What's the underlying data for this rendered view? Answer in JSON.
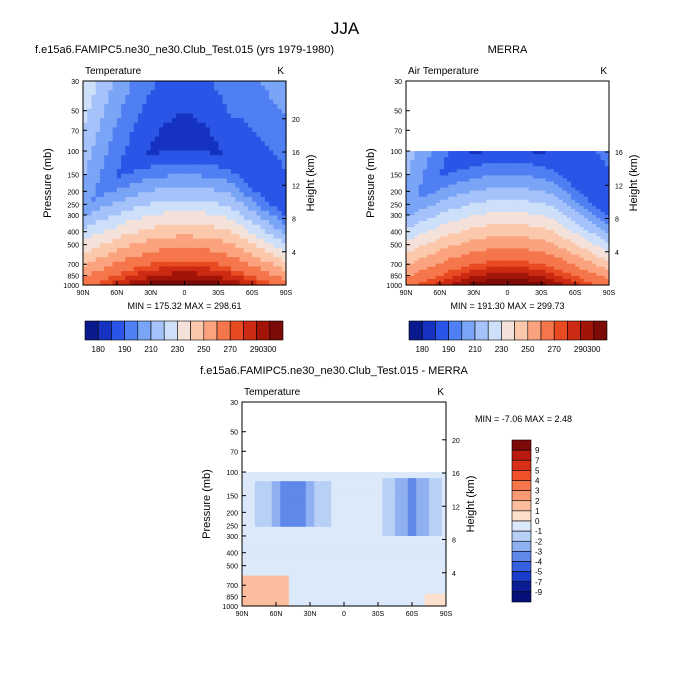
{
  "figure": {
    "title": "JJA"
  },
  "chart_data": [
    {
      "type": "heatmap",
      "id": "model",
      "panel_title": "f.e15a6.FAMIPC5.ne30_ne30.Club_Test.015 (yrs 1979-1980)",
      "corner_left": "Temperature",
      "corner_right": "K",
      "ylabel": "Pressure (mb)",
      "y2label": "Height (km)",
      "x_ticks": [
        "90N",
        "60N",
        "30N",
        "0",
        "30S",
        "60S",
        "90S"
      ],
      "p_ticks": [
        "30",
        "50",
        "70",
        "100",
        "150",
        "200",
        "250",
        "300",
        "400",
        "500",
        "700",
        "850",
        "1000"
      ],
      "height_ticks": [
        "20",
        "16",
        "12",
        "8",
        "4"
      ],
      "stats": "MIN = 175.32  MAX = 298.61",
      "data_top_mb": 30
    },
    {
      "type": "heatmap",
      "id": "obs",
      "panel_title": "MERRA",
      "corner_left": "Air Temperature",
      "corner_right": "K",
      "ylabel": "Pressure (mb)",
      "y2label": "Height (km)",
      "x_ticks": [
        "90N",
        "60N",
        "30N",
        "0",
        "30S",
        "60S",
        "90S"
      ],
      "p_ticks": [
        "30",
        "50",
        "70",
        "100",
        "150",
        "200",
        "250",
        "300",
        "400",
        "500",
        "700",
        "850",
        "1000"
      ],
      "height_ticks": [
        "16",
        "12",
        "8",
        "4"
      ],
      "stats": "MIN = 191.30  MAX = 299.73",
      "data_top_mb": 100
    },
    {
      "type": "heatmap",
      "id": "diff",
      "panel_title": "f.e15a6.FAMIPC5.ne30_ne30.Club_Test.015 - MERRA",
      "corner_left": "Temperature",
      "corner_right": "K",
      "ylabel": "Pressure (mb)",
      "y2label": "Height (km)",
      "x_ticks": [
        "90N",
        "60N",
        "30N",
        "0",
        "30S",
        "60S",
        "90S"
      ],
      "p_ticks": [
        "30",
        "50",
        "70",
        "100",
        "150",
        "200",
        "250",
        "300",
        "400",
        "500",
        "700",
        "850",
        "1000"
      ],
      "height_ticks": [
        "20",
        "16",
        "12",
        "8",
        "4"
      ],
      "stats": "MIN =  -7.06  MAX =   2.48",
      "data_top_mb": 100
    }
  ],
  "colorbar_abs": {
    "labels": [
      "180",
      "190",
      "210",
      "230",
      "250",
      "270",
      "290",
      "300"
    ],
    "colors": [
      "#0a1a8c",
      "#1532c0",
      "#2a55e6",
      "#4f7ff2",
      "#7aa4f6",
      "#a5c3fa",
      "#cddff9",
      "#f4e2da",
      "#fcc8ac",
      "#fba27e",
      "#f6764c",
      "#e84a22",
      "#cc2a12",
      "#a21408",
      "#7c0a06"
    ]
  },
  "colorbar_diff": {
    "labels": [
      "9",
      "7",
      "5",
      "4",
      "3",
      "2",
      "1",
      "0",
      "-1",
      "-2",
      "-3",
      "-4",
      "-5",
      "-7",
      "-9"
    ],
    "colors": [
      "#7e0a08",
      "#b81a10",
      "#d73016",
      "#f0512a",
      "#f7764c",
      "#fa9a74",
      "#fcbd9e",
      "#fde0cc",
      "#dce9fa",
      "#b8d0f6",
      "#8fb1f2",
      "#5f88ea",
      "#3760e0",
      "#1a3cc8",
      "#0c1c94",
      "#07107a"
    ]
  }
}
